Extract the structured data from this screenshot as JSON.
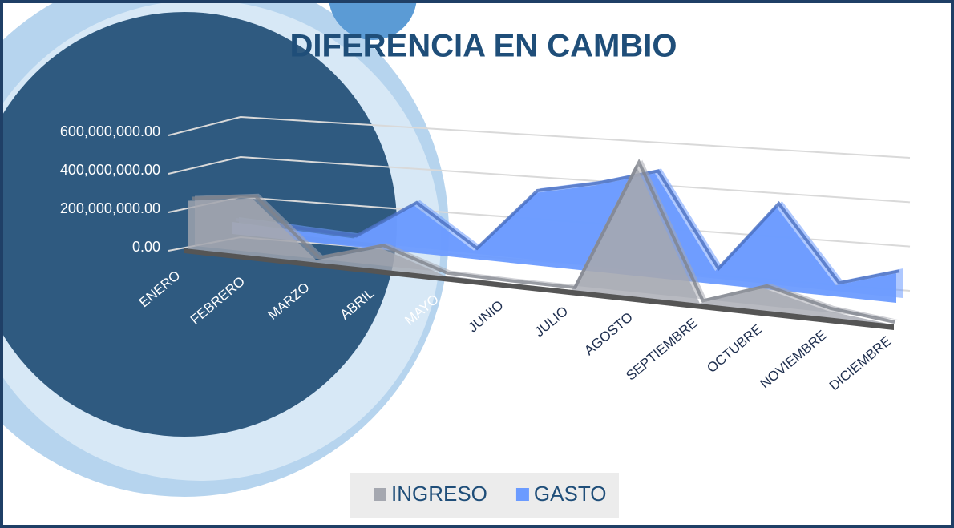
{
  "chart_data": {
    "type": "area",
    "title": "DIFERENCIA EN CAMBIO",
    "categories": [
      "ENERO",
      "FEBRERO",
      "MARZO",
      "ABRIL",
      "MAYO",
      "JUNIO",
      "JULIO",
      "AGOSTO",
      "SEPTIEMBRE",
      "OCTUBRE",
      "NOVIEMBRE",
      "DICIEMBRE"
    ],
    "series": [
      {
        "name": "INGRESO",
        "color": "#a5a8b0",
        "values": [
          250000000,
          290000000,
          20000000,
          110000000,
          10000000,
          5000000,
          5000000,
          600000000,
          5000000,
          100000000,
          30000000,
          0
        ]
      },
      {
        "name": "GASTO",
        "color": "#6b9bff",
        "values": [
          60000000,
          50000000,
          40000000,
          230000000,
          40000000,
          340000000,
          400000000,
          480000000,
          60000000,
          380000000,
          50000000,
          130000000
        ]
      }
    ],
    "ylim": [
      0,
      600000000
    ],
    "yticks": [
      {
        "value": 0,
        "label": "0.00"
      },
      {
        "value": 200000000,
        "label": "200,000,000.00"
      },
      {
        "value": 400000000,
        "label": "400,000,000.00"
      },
      {
        "value": 600000000,
        "label": "600,000,000.00"
      }
    ],
    "grid": true,
    "legend": "bottom"
  }
}
